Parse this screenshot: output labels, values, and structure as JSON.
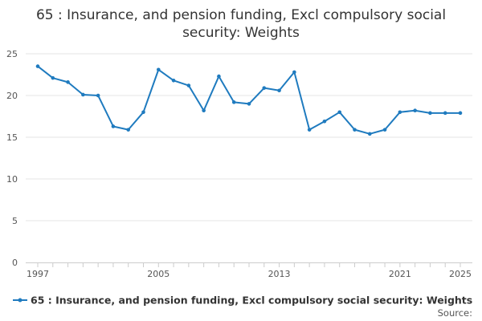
{
  "chart_data": {
    "type": "line",
    "title_line1": "65 : Insurance, and pension funding, Excl compulsory social",
    "title_line2": "security: Weights",
    "xlabel": "",
    "ylabel": "",
    "x": [
      1997,
      1998,
      1999,
      2000,
      2001,
      2002,
      2003,
      2004,
      2005,
      2006,
      2007,
      2008,
      2009,
      2010,
      2011,
      2012,
      2013,
      2014,
      2015,
      2016,
      2017,
      2018,
      2019,
      2020,
      2021,
      2022,
      2023,
      2024,
      2025
    ],
    "series": [
      {
        "name": "65 : Insurance, and pension funding, Excl compulsory social security: Weights",
        "color": "#1f7bbf",
        "values": [
          23.5,
          22.1,
          21.6,
          20.1,
          20.0,
          16.3,
          15.9,
          18.0,
          23.1,
          21.8,
          21.2,
          18.2,
          22.3,
          19.2,
          19.0,
          20.9,
          20.6,
          22.8,
          15.9,
          16.9,
          18.0,
          15.9,
          15.4,
          15.9,
          18.0,
          18.2,
          17.9,
          17.9,
          17.9
        ]
      }
    ],
    "ylim": [
      0,
      25
    ],
    "yticks": [
      "0",
      "5",
      "10",
      "15",
      "20",
      "25"
    ],
    "xticks": [
      "1997",
      "2005",
      "2013",
      "2021",
      "2025"
    ],
    "grid": true,
    "legend_position": "bottom",
    "source_label": "Source:"
  }
}
